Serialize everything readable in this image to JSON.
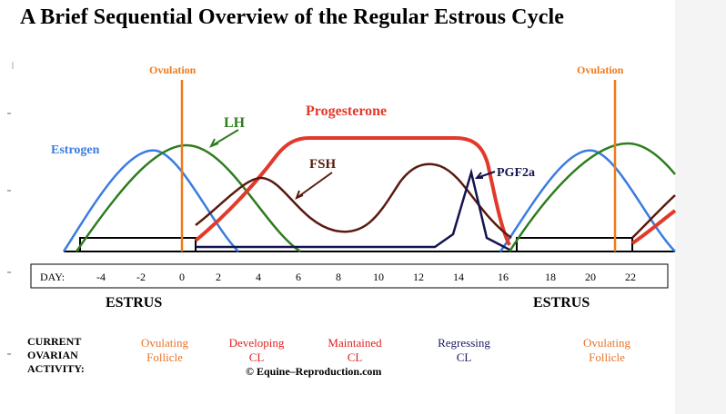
{
  "title": "A Brief Sequential Overview of the Regular Estrous Cycle",
  "labels": {
    "ovulation_left": "Ovulation",
    "ovulation_right": "Ovulation",
    "lh": "LH",
    "progesterone": "Progesterone",
    "estrogen": "Estrogen",
    "fsh": "FSH",
    "pgf2a": "PGF2a"
  },
  "day_axis": {
    "prefix": "DAY:",
    "ticks": [
      "-4",
      "-2",
      "0",
      "2",
      "4",
      "6",
      "8",
      "10",
      "12",
      "14",
      "16",
      "18",
      "20",
      "22"
    ]
  },
  "phases": {
    "estrus_left": "ESTRUS",
    "estrus_right": "ESTRUS"
  },
  "activity": {
    "heading": [
      "CURRENT",
      "OVARIAN",
      "ACTIVITY:"
    ],
    "stages": [
      {
        "line1": "Ovulating",
        "line2": "Follicle",
        "color": "#e8742a"
      },
      {
        "line1": "Developing",
        "line2": "CL",
        "color": "#e02020"
      },
      {
        "line1": "Maintained",
        "line2": "CL",
        "color": "#e02020"
      },
      {
        "line1": "Regressing",
        "line2": "CL",
        "color": "#1a1a66"
      },
      {
        "line1": "Ovulating",
        "line2": "Follicle",
        "color": "#e8742a"
      }
    ]
  },
  "copyright": "© Equine–Reproduction.com",
  "colors": {
    "estrogen": "#3a7ce0",
    "lh": "#2e7d1e",
    "progesterone": "#e23a2a",
    "fsh": "#5a1a0e",
    "pgf2a": "#141450",
    "ovulation": "#f07a1a"
  }
}
